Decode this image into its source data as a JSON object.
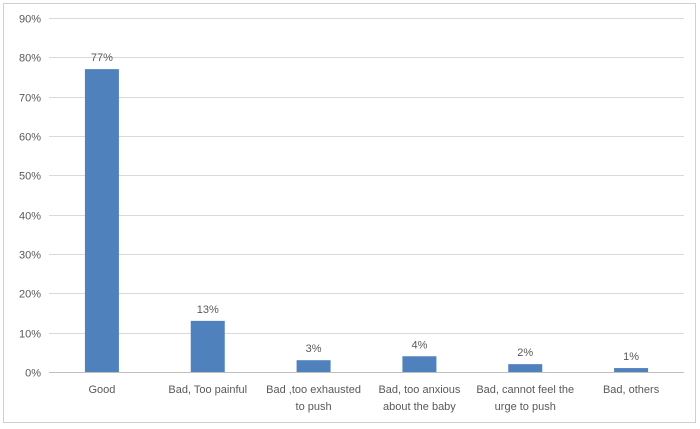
{
  "chart_data": {
    "type": "bar",
    "title": "",
    "xlabel": "",
    "ylabel": "",
    "categories": [
      [
        "Good"
      ],
      [
        "Bad, Too painful"
      ],
      [
        "Bad ,too exhausted",
        "to push"
      ],
      [
        "Bad, too  anxious",
        "about the baby"
      ],
      [
        "Bad, cannot feel the",
        "urge to push"
      ],
      [
        "Bad, others"
      ]
    ],
    "values": [
      77,
      13,
      3,
      4,
      2,
      1
    ],
    "data_labels": [
      "77%",
      "13%",
      "3%",
      "4%",
      "2%",
      "1%"
    ],
    "ylim": [
      0,
      90
    ],
    "y_ticks": [
      0,
      10,
      20,
      30,
      40,
      50,
      60,
      70,
      80,
      90
    ],
    "y_tick_labels": [
      "0%",
      "10%",
      "20%",
      "30%",
      "40%",
      "50%",
      "60%",
      "70%",
      "80%",
      "90%"
    ],
    "bar_color": "#4f81bd",
    "grid": true,
    "legend": "none"
  }
}
